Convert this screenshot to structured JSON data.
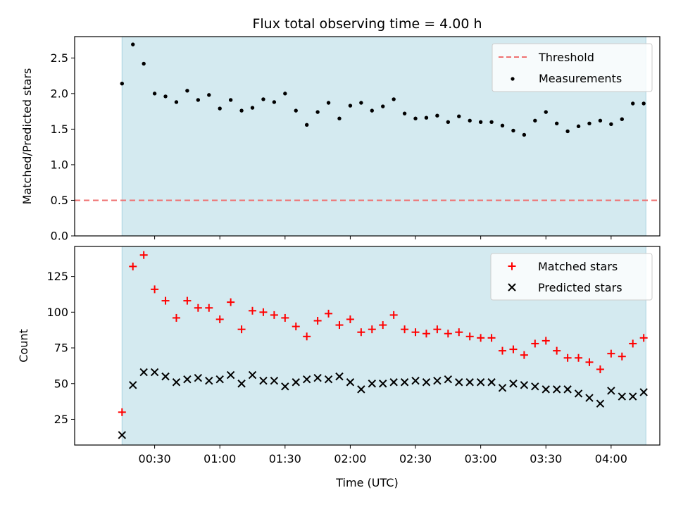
{
  "chart_data": {
    "type": "scatter",
    "title": "Flux total observing time = 4.00 h",
    "xlabel": "Time (UTC)",
    "x_tick_labels": [
      "00:30",
      "01:00",
      "01:30",
      "02:00",
      "02:30",
      "03:00",
      "03:30",
      "04:00"
    ],
    "x_tick_minutes": [
      30,
      60,
      90,
      120,
      150,
      180,
      210,
      240
    ],
    "x_range_minutes": [
      -6.8,
      262.4
    ],
    "observing_window_minutes": [
      15,
      256
    ],
    "times": [
      "00:15",
      "00:20",
      "00:25",
      "00:30",
      "00:35",
      "00:40",
      "00:45",
      "00:50",
      "00:55",
      "01:00",
      "01:05",
      "01:10",
      "01:15",
      "01:20",
      "01:25",
      "01:30",
      "01:35",
      "01:40",
      "01:45",
      "01:50",
      "01:55",
      "02:00",
      "02:05",
      "02:10",
      "02:15",
      "02:20",
      "02:25",
      "02:30",
      "02:35",
      "02:40",
      "02:45",
      "02:50",
      "02:55",
      "03:00",
      "03:05",
      "03:10",
      "03:15",
      "03:20",
      "03:25",
      "03:30",
      "03:35",
      "03:40",
      "03:45",
      "03:50",
      "03:55",
      "04:00",
      "04:05",
      "04:10",
      "04:15"
    ],
    "x_minutes": [
      15,
      20,
      25,
      30,
      35,
      40,
      45,
      50,
      55,
      60,
      65,
      70,
      75,
      80,
      85,
      90,
      95,
      100,
      105,
      110,
      115,
      120,
      125,
      130,
      135,
      140,
      145,
      150,
      155,
      160,
      165,
      170,
      175,
      180,
      185,
      190,
      195,
      200,
      205,
      210,
      215,
      220,
      225,
      230,
      235,
      240,
      245,
      250,
      255
    ],
    "panels": [
      {
        "ylabel": "Matched/Predicted stars",
        "ylim": [
          0,
          2.8
        ],
        "y_ticks": [
          0.0,
          0.5,
          1.0,
          1.5,
          2.0,
          2.5
        ],
        "y_tick_labels": [
          "0.0",
          "0.5",
          "1.0",
          "1.5",
          "2.0",
          "2.5"
        ],
        "threshold": 0.5,
        "legend_position": "top-right",
        "legend": [
          {
            "label": "Threshold",
            "style": "dashed-line",
            "color": "#ef7070"
          },
          {
            "label": "Measurements",
            "style": "dot",
            "color": "#000000"
          }
        ],
        "series": [
          {
            "name": "Measurements",
            "marker": "dot",
            "color": "#000000",
            "values": [
              2.14,
              2.69,
              2.42,
              2.0,
              1.96,
              1.88,
              2.04,
              1.91,
              1.98,
              1.79,
              1.91,
              1.76,
              1.8,
              1.92,
              1.88,
              2.0,
              1.76,
              1.56,
              1.74,
              1.87,
              1.65,
              1.83,
              1.87,
              1.76,
              1.82,
              1.92,
              1.72,
              1.65,
              1.66,
              1.69,
              1.6,
              1.68,
              1.62,
              1.6,
              1.6,
              1.55,
              1.48,
              1.42,
              1.62,
              1.74,
              1.58,
              1.47,
              1.54,
              1.58,
              1.62,
              1.57,
              1.64,
              1.86,
              1.86
            ]
          }
        ]
      },
      {
        "ylabel": "Count",
        "ylim": [
          7,
          146
        ],
        "y_ticks": [
          25,
          50,
          75,
          100,
          125
        ],
        "y_tick_labels": [
          "25",
          "50",
          "75",
          "100",
          "125"
        ],
        "legend_position": "top-right",
        "legend": [
          {
            "label": "Matched stars",
            "style": "plus",
            "color": "#ff0000"
          },
          {
            "label": "Predicted stars",
            "style": "x",
            "color": "#000000"
          }
        ],
        "series": [
          {
            "name": "Matched stars",
            "marker": "plus",
            "color": "#ff0000",
            "values": [
              30,
              132,
              140,
              116,
              108,
              96,
              108,
              103,
              103,
              95,
              107,
              88,
              101,
              100,
              98,
              96,
              90,
              83,
              94,
              99,
              91,
              95,
              86,
              88,
              91,
              98,
              88,
              86,
              85,
              88,
              85,
              86,
              83,
              82,
              82,
              73,
              74,
              70,
              78,
              80,
              73,
              68,
              68,
              65,
              60,
              71,
              69,
              78,
              82
            ]
          },
          {
            "name": "Predicted stars",
            "marker": "x",
            "color": "#000000",
            "values": [
              14,
              49,
              58,
              58,
              55,
              51,
              53,
              54,
              52,
              53,
              56,
              50,
              56,
              52,
              52,
              48,
              51,
              53,
              54,
              53,
              55,
              51,
              46,
              50,
              50,
              51,
              51,
              52,
              51,
              52,
              53,
              51,
              51,
              51,
              51,
              47,
              50,
              49,
              48,
              46,
              46,
              46,
              43,
              40,
              36,
              45,
              41,
              41,
              44
            ]
          }
        ]
      }
    ],
    "colors": {
      "window_fill": "#d4eaf0",
      "window_edge": "#a9d4e0",
      "threshold": "#ef7070",
      "measurement": "#000000",
      "matched": "#ff0000",
      "predicted": "#000000"
    }
  }
}
